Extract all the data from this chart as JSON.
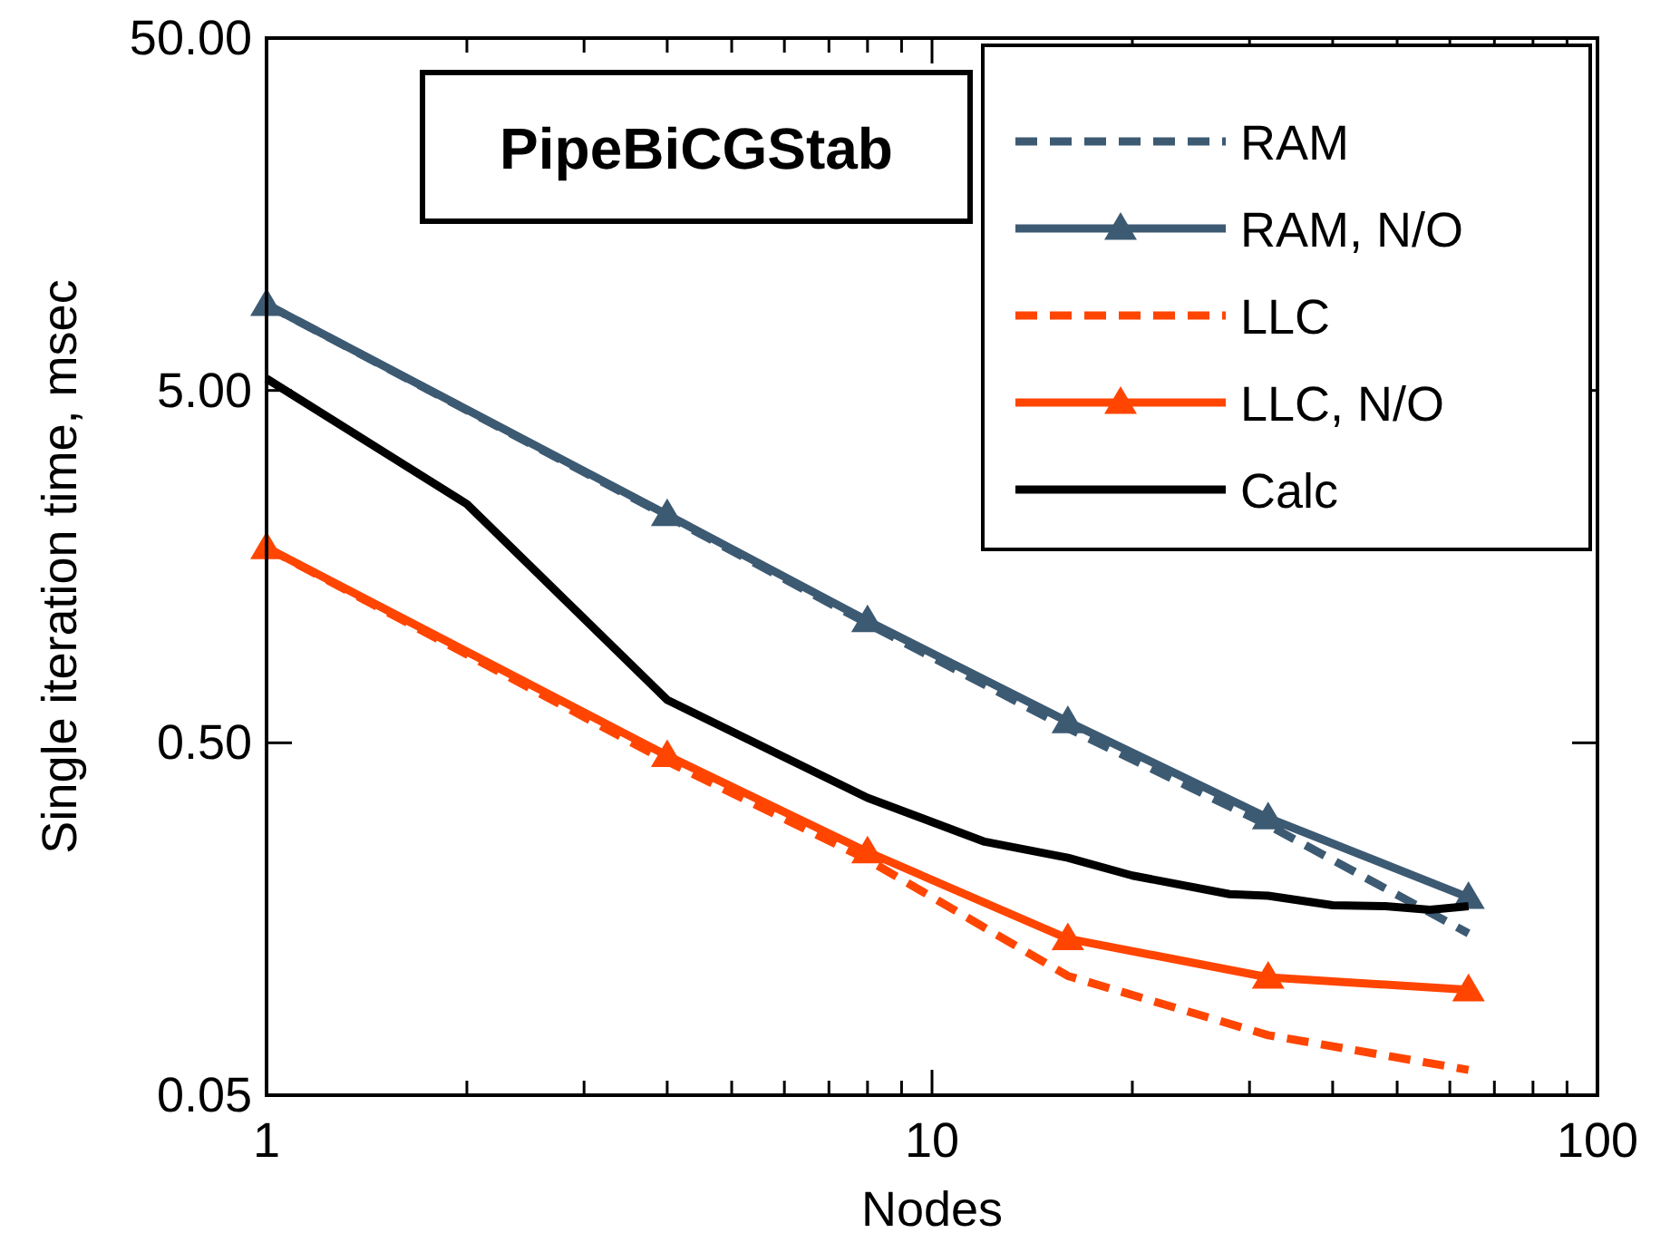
{
  "chart_data": {
    "type": "line",
    "title": "PipeBiCGStab",
    "xlabel": "Nodes",
    "ylabel": "Single iteration time, msec",
    "log": "xy",
    "grid": false,
    "legend": "top right",
    "xlim": [
      1,
      100
    ],
    "xticks": [
      1,
      {
        "value": 2,
        "label": null
      },
      {
        "value": 3,
        "label": null
      },
      {
        "value": 4,
        "label": null
      },
      {
        "value": 5,
        "label": null
      },
      {
        "value": 6,
        "label": null
      },
      {
        "value": 7,
        "label": null
      },
      {
        "value": 8,
        "label": null
      },
      {
        "value": 9,
        "label": null
      },
      10,
      {
        "value": 20,
        "label": null
      },
      {
        "value": 30,
        "label": null
      },
      {
        "value": 40,
        "label": null
      },
      {
        "value": 50,
        "label": null
      },
      {
        "value": 60,
        "label": null
      },
      {
        "value": 70,
        "label": null
      },
      {
        "value": 80,
        "label": null
      },
      {
        "value": 90,
        "label": null
      },
      100
    ],
    "ylim": [
      0.05,
      50
    ],
    "yticks": [
      {
        "value": 0.05,
        "label": "0.05"
      },
      {
        "value": 0.5,
        "label": "0.50"
      },
      {
        "value": 5,
        "label": "5.00"
      },
      {
        "value": 50,
        "label": "50.00"
      }
    ],
    "series": [
      {
        "name": "RAM",
        "color": "#3d5a73",
        "line_style": "dashed",
        "x": [
          1,
          4,
          8,
          16,
          32,
          64
        ],
        "values": [
          8.77,
          2.2,
          1.09,
          0.55,
          0.292,
          0.144
        ]
      },
      {
        "name": "RAM, N/O",
        "color": "#3d5a73",
        "line_style": "solid",
        "marker": "triangle",
        "x": [
          1,
          4,
          8,
          16,
          32,
          64
        ],
        "values": [
          8.77,
          2.22,
          1.11,
          0.574,
          0.306,
          0.182
        ]
      },
      {
        "name": "LLC",
        "color": "#ff4500",
        "line_style": "dashed",
        "x": [
          1,
          4,
          8,
          16,
          32,
          64
        ],
        "values": [
          1.79,
          0.443,
          0.233,
          0.109,
          0.074,
          0.059
        ]
      },
      {
        "name": "LLC, N/O",
        "color": "#ff4500",
        "line_style": "solid",
        "marker": "triangle",
        "x": [
          1,
          4,
          8,
          16,
          32,
          64
        ],
        "values": [
          1.79,
          0.46,
          0.245,
          0.139,
          0.108,
          0.0995
        ]
      },
      {
        "name": "Calc",
        "color": "#000000",
        "line_style": "solid",
        "x": [
          1,
          2,
          4,
          8,
          12,
          16,
          20,
          28,
          32,
          40,
          48,
          56,
          64
        ],
        "values": [
          5.4,
          2.38,
          0.662,
          0.349,
          0.262,
          0.236,
          0.21,
          0.186,
          0.184,
          0.173,
          0.172,
          0.168,
          0.172
        ]
      }
    ]
  }
}
